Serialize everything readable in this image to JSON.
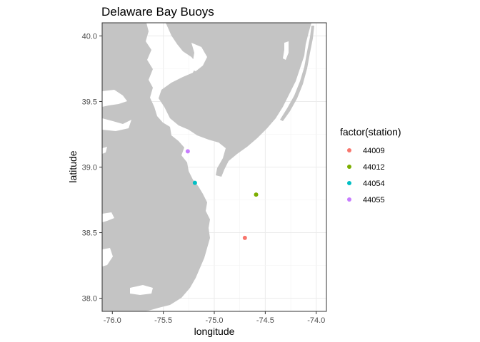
{
  "chart_data": {
    "type": "scatter",
    "title": "Delaware Bay Buoys",
    "xlabel": "longitude",
    "ylabel": "latitude",
    "xlim": [
      -76.1,
      -73.9
    ],
    "ylim": [
      37.9,
      40.1
    ],
    "x_ticks": [
      -76.0,
      -75.5,
      -75.0,
      -74.5,
      -74.0
    ],
    "x_tick_labels": [
      "-76.0",
      "-75.5",
      "-75.0",
      "-74.5",
      "-74.0"
    ],
    "y_ticks": [
      38.0,
      38.5,
      39.0,
      39.5,
      40.0
    ],
    "y_tick_labels": [
      "38.0",
      "38.5",
      "39.0",
      "39.5",
      "40.0"
    ],
    "grid": true,
    "legend": {
      "title": "factor(station)",
      "placement": "right",
      "entries": [
        {
          "label": "44009",
          "color": "#f8766d"
        },
        {
          "label": "44012",
          "color": "#7cae00"
        },
        {
          "label": "44054",
          "color": "#00bfc4"
        },
        {
          "label": "44055",
          "color": "#c77cff"
        }
      ]
    },
    "points": [
      {
        "station": "44009",
        "lon": -74.7,
        "lat": 38.46,
        "color": "#f8766d"
      },
      {
        "station": "44012",
        "lon": -74.59,
        "lat": 38.79,
        "color": "#7cae00"
      },
      {
        "station": "44054",
        "lon": -75.19,
        "lat": 38.88,
        "color": "#00bfc4"
      },
      {
        "station": "44055",
        "lon": -75.26,
        "lat": 39.12,
        "color": "#c77cff"
      }
    ],
    "land_color": "#c4c4c4",
    "water_color": "#ffffff"
  }
}
